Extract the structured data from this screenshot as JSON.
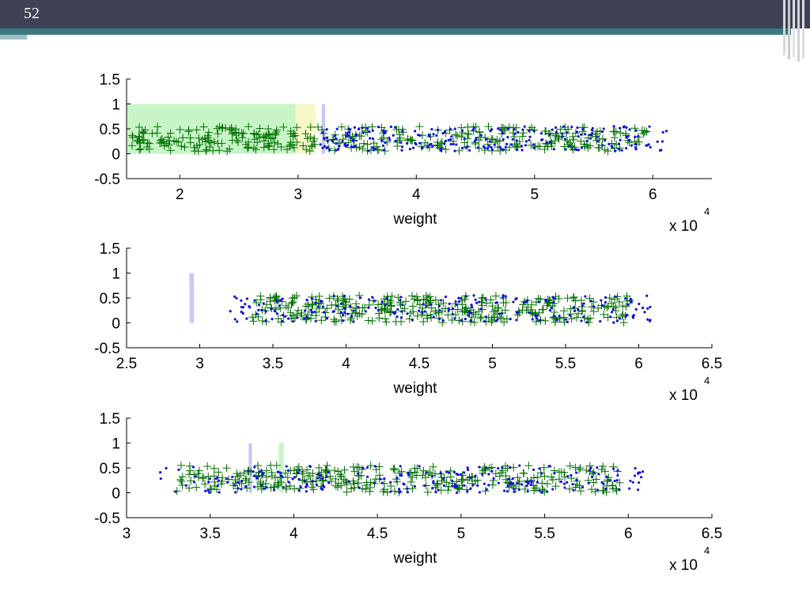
{
  "slide": {
    "page_number": "52"
  },
  "colors": {
    "header": "#3f4254",
    "accent": "#3a7a80",
    "series_plus": "#007000",
    "series_dot": "#1010dd",
    "band_green": "#c8f5c8",
    "band_yellow": "#f7f7c8",
    "band_blue": "#c8c8f5"
  },
  "chart_data": [
    {
      "type": "scatter",
      "xlabel": "weight",
      "x_multiplier": "x 10",
      "x_exponent": "4",
      "xlim": [
        1.55,
        6.5
      ],
      "ylim": [
        -0.5,
        1.5
      ],
      "xticks": [
        "2",
        "3",
        "4",
        "5",
        "6"
      ],
      "xtick_values": [
        2,
        3,
        4,
        5,
        6
      ],
      "yticks": [
        "1.5",
        "1",
        "0.5",
        "0",
        "-0.5"
      ],
      "ytick_values": [
        1.5,
        1,
        0.5,
        0,
        -0.5
      ],
      "bands": [
        {
          "x0": 1.55,
          "x1": 2.98,
          "y0": 0,
          "y1": 1,
          "color": "green"
        },
        {
          "x0": 2.98,
          "x1": 3.15,
          "y0": 0,
          "y1": 1,
          "color": "yellow"
        },
        {
          "x0": 3.2,
          "x1": 3.23,
          "y0": 0,
          "y1": 1,
          "color": "blue"
        }
      ],
      "series": [
        {
          "marker": "plus",
          "x_range": [
            1.58,
            5.95
          ],
          "y_range": [
            0.05,
            0.55
          ],
          "count": 380
        },
        {
          "marker": "dot",
          "x_range": [
            3.15,
            6.12
          ],
          "y_range": [
            0.05,
            0.55
          ],
          "count": 240
        }
      ]
    },
    {
      "type": "scatter",
      "xlabel": "weight",
      "x_multiplier": "x 10",
      "x_exponent": "4",
      "xlim": [
        2.5,
        6.5
      ],
      "ylim": [
        -0.5,
        1.5
      ],
      "xticks": [
        "2.5",
        "3",
        "3.5",
        "4",
        "4.5",
        "5",
        "5.5",
        "6",
        "6.5"
      ],
      "xtick_values": [
        2.5,
        3,
        3.5,
        4,
        4.5,
        5,
        5.5,
        6,
        6.5
      ],
      "yticks": [
        "1.5",
        "1",
        "0.5",
        "0",
        "-0.5"
      ],
      "ytick_values": [
        1.5,
        1,
        0.5,
        0,
        -0.5
      ],
      "bands": [
        {
          "x0": 2.93,
          "x1": 2.96,
          "y0": 0,
          "y1": 1,
          "color": "blue"
        }
      ],
      "series": [
        {
          "marker": "plus",
          "x_range": [
            3.35,
            5.95
          ],
          "y_range": [
            0.0,
            0.55
          ],
          "count": 330
        },
        {
          "marker": "dot",
          "x_range": [
            3.2,
            6.1
          ],
          "y_range": [
            0.0,
            0.55
          ],
          "count": 220
        }
      ]
    },
    {
      "type": "scatter",
      "xlabel": "weight",
      "x_multiplier": "x 10",
      "x_exponent": "4",
      "xlim": [
        3.0,
        6.5
      ],
      "ylim": [
        -0.5,
        1.5
      ],
      "xticks": [
        "3",
        "3.5",
        "4",
        "4.5",
        "5",
        "5.5",
        "6",
        "6.5"
      ],
      "xtick_values": [
        3,
        3.5,
        4,
        4.5,
        5,
        5.5,
        6,
        6.5
      ],
      "yticks": [
        "1.5",
        "1",
        "0.5",
        "0",
        "-0.5"
      ],
      "ytick_values": [
        1.5,
        1,
        0.5,
        0,
        -0.5
      ],
      "bands": [
        {
          "x0": 3.73,
          "x1": 3.75,
          "y0": 0,
          "y1": 1,
          "color": "blue"
        },
        {
          "x0": 3.91,
          "x1": 3.94,
          "y0": 0,
          "y1": 1,
          "color": "green"
        }
      ],
      "series": [
        {
          "marker": "plus",
          "x_range": [
            3.3,
            5.95
          ],
          "y_range": [
            0.0,
            0.55
          ],
          "count": 330
        },
        {
          "marker": "dot",
          "x_range": [
            3.2,
            6.1
          ],
          "y_range": [
            0.0,
            0.55
          ],
          "count": 230
        }
      ]
    }
  ]
}
